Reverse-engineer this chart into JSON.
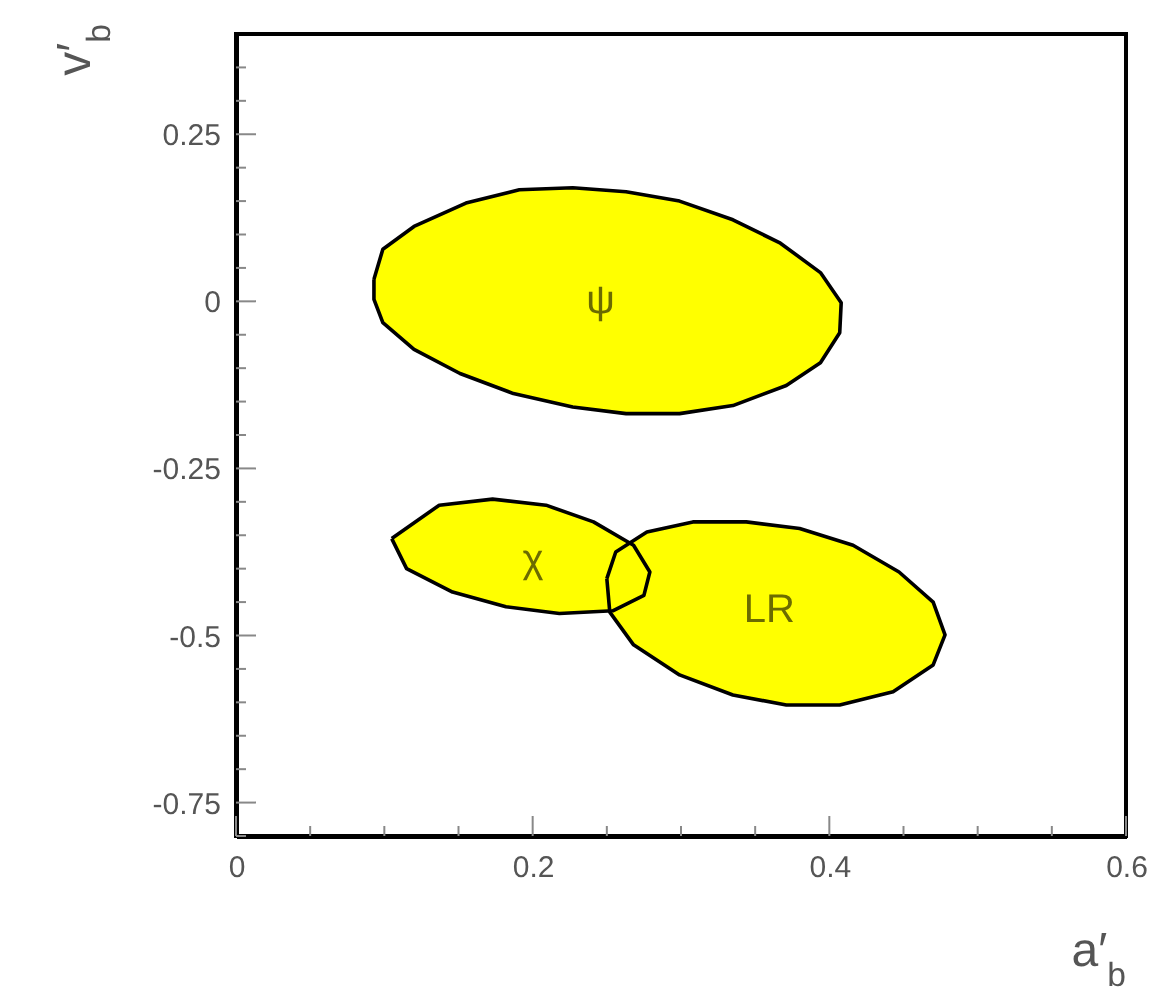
{
  "chart_data": {
    "type": "area",
    "xlabel": "a′$_{b}$",
    "ylabel": "v′$_{b}$",
    "xlim": [
      0,
      0.6
    ],
    "ylim": [
      -0.8,
      0.4
    ],
    "xticks": [
      0,
      {
        "value": 0.05,
        "label": null
      },
      {
        "value": 0.1,
        "label": null
      },
      {
        "value": 0.15,
        "label": null
      },
      0.2,
      {
        "value": 0.25,
        "label": null
      },
      {
        "value": 0.3,
        "label": null
      },
      {
        "value": 0.35,
        "label": null
      },
      0.4,
      {
        "value": 0.45,
        "label": null
      },
      {
        "value": 0.5,
        "label": null
      },
      {
        "value": 0.55,
        "label": null
      },
      0.6
    ],
    "yticks": [
      {
        "value": -0.8,
        "label": null
      },
      -0.75,
      {
        "value": -0.7,
        "label": null
      },
      {
        "value": -0.65,
        "label": null
      },
      {
        "value": -0.6,
        "label": null
      },
      {
        "value": -0.55,
        "label": null
      },
      -0.5,
      {
        "value": -0.45,
        "label": null
      },
      {
        "value": -0.4,
        "label": null
      },
      {
        "value": -0.35,
        "label": null
      },
      {
        "value": -0.3,
        "label": null
      },
      -0.25,
      {
        "value": -0.2,
        "label": null
      },
      {
        "value": -0.15,
        "label": null
      },
      {
        "value": -0.1,
        "label": null
      },
      {
        "value": -0.05,
        "label": null
      },
      0,
      {
        "value": 0.05,
        "label": null
      },
      {
        "value": 0.1,
        "label": null
      },
      {
        "value": 0.15,
        "label": null
      },
      {
        "value": 0.2,
        "label": null
      },
      0.25,
      {
        "value": 0.3,
        "label": null
      },
      {
        "value": 0.35,
        "label": null
      }
    ],
    "series": [
      {
        "name": "ψ",
        "color": "#ffff00",
        "x": [
          0.093,
          0.099,
          0.12,
          0.155,
          0.191,
          0.227,
          0.263,
          0.299,
          0.335,
          0.367,
          0.394,
          0.408,
          0.407,
          0.394,
          0.371,
          0.335,
          0.299,
          0.263,
          0.227,
          0.187,
          0.151,
          0.12,
          0.099,
          0.093
        ],
        "values": [
          0.033,
          0.078,
          0.112,
          0.147,
          0.167,
          0.17,
          0.164,
          0.15,
          0.122,
          0.087,
          0.043,
          -0.002,
          -0.047,
          -0.092,
          -0.126,
          -0.156,
          -0.168,
          -0.168,
          -0.158,
          -0.138,
          -0.108,
          -0.072,
          -0.032,
          0.003
        ]
      },
      {
        "name": "χ",
        "color": "#ffff00",
        "x": [
          0.105,
          0.137,
          0.173,
          0.209,
          0.241,
          0.268,
          0.279,
          0.275,
          0.254,
          0.218,
          0.182,
          0.146,
          0.115
        ],
        "values": [
          -0.355,
          -0.305,
          -0.296,
          -0.305,
          -0.33,
          -0.365,
          -0.405,
          -0.44,
          -0.463,
          -0.467,
          -0.457,
          -0.435,
          -0.4
        ]
      },
      {
        "name": "LR",
        "color": "#ffff00",
        "x": [
          0.25,
          0.256,
          0.277,
          0.308,
          0.344,
          0.38,
          0.416,
          0.447,
          0.47,
          0.478,
          0.47,
          0.443,
          0.407,
          0.371,
          0.335,
          0.299,
          0.268,
          0.252
        ],
        "values": [
          -0.415,
          -0.375,
          -0.345,
          -0.33,
          -0.33,
          -0.34,
          -0.365,
          -0.405,
          -0.45,
          -0.499,
          -0.544,
          -0.584,
          -0.604,
          -0.604,
          -0.589,
          -0.559,
          -0.514,
          -0.465
        ]
      }
    ]
  }
}
